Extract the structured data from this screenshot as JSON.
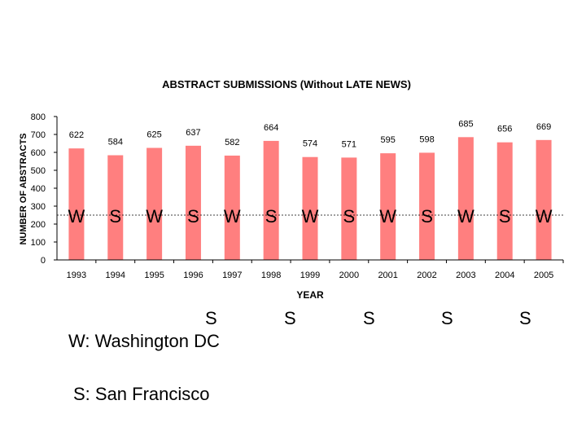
{
  "chart_data": {
    "type": "bar",
    "title": "ABSTRACT SUBMISSIONS (Without LATE NEWS)",
    "xlabel": "YEAR",
    "ylabel": "NUMBER OF ABSTRACTS",
    "ylim": [
      0,
      800
    ],
    "yticks": [
      "0",
      "100",
      "200",
      "300",
      "400",
      "500",
      "600",
      "700",
      "800"
    ],
    "categories": [
      "1993",
      "1994",
      "1995",
      "1996",
      "1997",
      "1998",
      "1999",
      "2000",
      "2001",
      "2002",
      "2003",
      "2004",
      "2005"
    ],
    "values": [
      622,
      584,
      625,
      637,
      582,
      664,
      574,
      571,
      595,
      598,
      685,
      656,
      669
    ],
    "value_labels": [
      "622",
      "584",
      "625",
      "637",
      "582",
      "664",
      "574",
      "571",
      "595",
      "598",
      "685",
      "656",
      "669"
    ],
    "bar_letters": [
      "W",
      "S",
      "W",
      "S",
      "W",
      "S",
      "W",
      "S",
      "W",
      "S",
      "W",
      "S",
      "W"
    ],
    "reference_line_value": 250,
    "grid": false,
    "bar_color": "#ff7f7f",
    "bar_color_highlight": "#ff9999",
    "axis_color": "#000000"
  },
  "legend": {
    "washington": "W: Washington DC",
    "sanfrancisco": "S: San Francisco"
  },
  "extra_letters": [
    "S",
    "S",
    "S",
    "S",
    "S"
  ]
}
